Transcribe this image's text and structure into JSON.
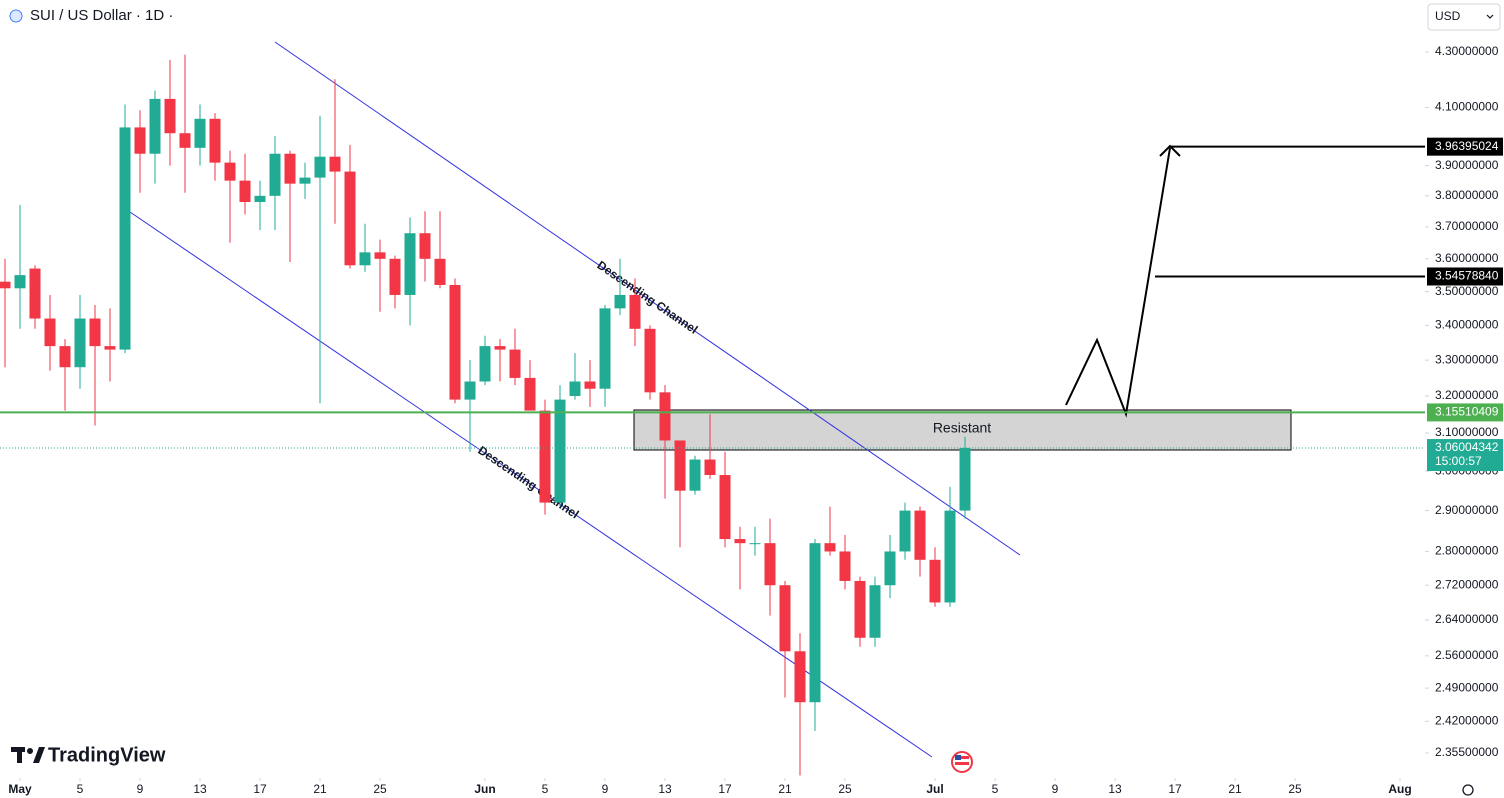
{
  "chart_data": {
    "type": "candlestick",
    "title": "SUI / US Dollar · 1D ·",
    "currency": "USD",
    "brand": "TradingView",
    "log": true,
    "grid": false,
    "up_color": "#22ab94",
    "down_color": "#f23645",
    "x": [
      "04-30",
      "05-01",
      "05-02",
      "05-03",
      "05-04",
      "05-05",
      "05-06",
      "05-07",
      "05-08",
      "05-09",
      "05-10",
      "05-11",
      "05-12",
      "05-13",
      "05-14",
      "05-15",
      "05-16",
      "05-17",
      "05-18",
      "05-19",
      "05-20",
      "05-21",
      "05-22",
      "05-23",
      "05-24",
      "05-25",
      "05-26",
      "05-27",
      "05-28",
      "05-29",
      "05-30",
      "05-31",
      "06-01",
      "06-02",
      "06-03",
      "06-04",
      "06-05",
      "06-06",
      "06-07",
      "06-08",
      "06-09",
      "06-10",
      "06-11",
      "06-12",
      "06-13",
      "06-14",
      "06-15",
      "06-16",
      "06-17",
      "06-18",
      "06-19",
      "06-20",
      "06-21",
      "06-22",
      "06-23",
      "06-24",
      "06-25",
      "06-26",
      "06-27",
      "06-28",
      "06-29",
      "06-30",
      "07-01",
      "07-02",
      "07-03"
    ],
    "open": [
      3.53,
      3.51,
      3.57,
      3.42,
      3.34,
      3.28,
      3.42,
      3.34,
      3.33,
      4.03,
      3.94,
      4.13,
      4.01,
      3.96,
      4.06,
      3.91,
      3.85,
      3.78,
      3.8,
      3.94,
      3.84,
      3.86,
      3.93,
      3.88,
      3.58,
      3.62,
      3.6,
      3.49,
      3.68,
      3.6,
      3.52,
      3.19,
      3.24,
      3.34,
      3.33,
      3.25,
      3.16,
      2.92,
      3.2,
      3.24,
      3.22,
      3.45,
      3.49,
      3.39,
      3.21,
      3.08,
      2.95,
      3.03,
      2.99,
      2.83,
      2.82,
      2.82,
      2.72,
      2.57,
      2.46,
      2.82,
      2.8,
      2.73,
      2.6,
      2.72,
      2.8,
      2.9,
      2.78,
      2.68,
      2.9
    ],
    "high": [
      3.6,
      3.77,
      3.58,
      3.49,
      3.36,
      3.49,
      3.46,
      3.45,
      4.11,
      4.09,
      4.16,
      4.27,
      4.29,
      4.11,
      4.08,
      3.95,
      3.94,
      3.85,
      4.0,
      3.95,
      3.91,
      4.07,
      4.2,
      3.97,
      3.71,
      3.66,
      3.61,
      3.73,
      3.75,
      3.75,
      3.54,
      3.3,
      3.37,
      3.36,
      3.39,
      3.3,
      3.19,
      3.23,
      3.32,
      3.3,
      3.46,
      3.6,
      3.54,
      3.4,
      3.23,
      3.08,
      3.04,
      3.15,
      3.05,
      2.86,
      2.86,
      2.88,
      2.73,
      2.61,
      2.83,
      2.91,
      2.84,
      2.74,
      2.74,
      2.84,
      2.92,
      2.91,
      2.81,
      2.96,
      3.09
    ],
    "low": [
      3.28,
      3.39,
      3.39,
      3.27,
      3.16,
      3.22,
      3.12,
      3.24,
      3.32,
      3.81,
      3.84,
      3.9,
      3.81,
      3.9,
      3.85,
      3.65,
      3.74,
      3.69,
      3.69,
      3.59,
      3.79,
      3.18,
      3.71,
      3.57,
      3.56,
      3.44,
      3.45,
      3.4,
      3.53,
      3.51,
      3.18,
      3.05,
      3.23,
      3.24,
      3.23,
      3.16,
      2.89,
      2.91,
      3.19,
      3.17,
      3.17,
      3.43,
      3.34,
      3.19,
      2.93,
      2.81,
      2.94,
      2.98,
      2.81,
      2.71,
      2.79,
      2.65,
      2.47,
      2.31,
      2.4,
      2.79,
      2.71,
      2.58,
      2.58,
      2.69,
      2.78,
      2.74,
      2.67,
      2.67,
      2.88
    ],
    "close": [
      3.51,
      3.55,
      3.42,
      3.34,
      3.28,
      3.42,
      3.34,
      3.33,
      4.03,
      3.94,
      4.13,
      4.01,
      3.96,
      4.06,
      3.91,
      3.85,
      3.78,
      3.8,
      3.94,
      3.84,
      3.86,
      3.93,
      3.88,
      3.58,
      3.62,
      3.6,
      3.49,
      3.68,
      3.6,
      3.52,
      3.19,
      3.24,
      3.34,
      3.33,
      3.25,
      3.16,
      2.92,
      3.19,
      3.24,
      3.22,
      3.45,
      3.49,
      3.39,
      3.21,
      3.08,
      2.95,
      3.03,
      2.99,
      2.83,
      2.82,
      2.82,
      2.72,
      2.57,
      2.46,
      2.82,
      2.8,
      2.73,
      2.6,
      2.72,
      2.8,
      2.9,
      2.78,
      2.68,
      2.9,
      3.06004342
    ],
    "xlim": [
      "04-30",
      "08-03"
    ],
    "xticks": [
      {
        "value": "05-01",
        "label": "May"
      },
      {
        "value": "05-05",
        "label": "5"
      },
      {
        "value": "05-09",
        "label": "9"
      },
      {
        "value": "05-13",
        "label": "13"
      },
      {
        "value": "05-17",
        "label": "17"
      },
      {
        "value": "05-21",
        "label": "21"
      },
      {
        "value": "05-25",
        "label": "25"
      },
      {
        "value": "06-01",
        "label": "Jun"
      },
      {
        "value": "06-05",
        "label": "5"
      },
      {
        "value": "06-09",
        "label": "9"
      },
      {
        "value": "06-13",
        "label": "13"
      },
      {
        "value": "06-17",
        "label": "17"
      },
      {
        "value": "06-21",
        "label": "21"
      },
      {
        "value": "06-25",
        "label": "25"
      },
      {
        "value": "07-01",
        "label": "Jul"
      },
      {
        "value": "07-05",
        "label": "5"
      },
      {
        "value": "07-09",
        "label": "9"
      },
      {
        "value": "07-13",
        "label": "13"
      },
      {
        "value": "07-17",
        "label": "17"
      },
      {
        "value": "07-21",
        "label": "21"
      },
      {
        "value": "07-25",
        "label": "25"
      },
      {
        "value": "08-01",
        "label": "Aug"
      }
    ],
    "ylim": [
      2.305,
      4.496
    ],
    "yticks": [
      {
        "value": 4.3,
        "label": "4.30000000"
      },
      {
        "value": 4.1,
        "label": "4.10000000"
      },
      {
        "value": 3.9,
        "label": "3.90000000"
      },
      {
        "value": 3.8,
        "label": "3.80000000"
      },
      {
        "value": 3.7,
        "label": "3.70000000"
      },
      {
        "value": 3.6,
        "label": "3.60000000"
      },
      {
        "value": 3.5,
        "label": "3.50000000"
      },
      {
        "value": 3.4,
        "label": "3.40000000"
      },
      {
        "value": 3.3,
        "label": "3.30000000"
      },
      {
        "value": 3.2,
        "label": "3.20000000"
      },
      {
        "value": 3.1,
        "label": "3.10000000"
      },
      {
        "value": 3.0,
        "label": "3.00000000"
      },
      {
        "value": 2.9,
        "label": "2.90000000"
      },
      {
        "value": 2.8,
        "label": "2.80000000"
      },
      {
        "value": 2.72,
        "label": "2.72000000"
      },
      {
        "value": 2.64,
        "label": "2.64000000"
      },
      {
        "value": 2.56,
        "label": "2.56000000"
      },
      {
        "value": 2.49,
        "label": "2.49000000"
      },
      {
        "value": 2.42,
        "label": "2.42000000"
      },
      {
        "value": 2.355,
        "label": "2.35500000"
      }
    ],
    "price_lines": [
      {
        "value": 3.96395024,
        "label": "3.96395024",
        "color": "#000000"
      },
      {
        "value": 3.5457884,
        "label": "3.54578840",
        "color": "#000000"
      },
      {
        "value": 3.15510409,
        "label": "3.15510409",
        "color": "#4caf50"
      }
    ],
    "last_price": {
      "value": 3.06004342,
      "label": "3.06004342",
      "countdown": "15:00:57",
      "color": "#22ab94"
    },
    "annotations": {
      "resistance": "Resistant",
      "channel_upper": "Descending Channel",
      "channel_lower": "Descending Channel"
    }
  }
}
